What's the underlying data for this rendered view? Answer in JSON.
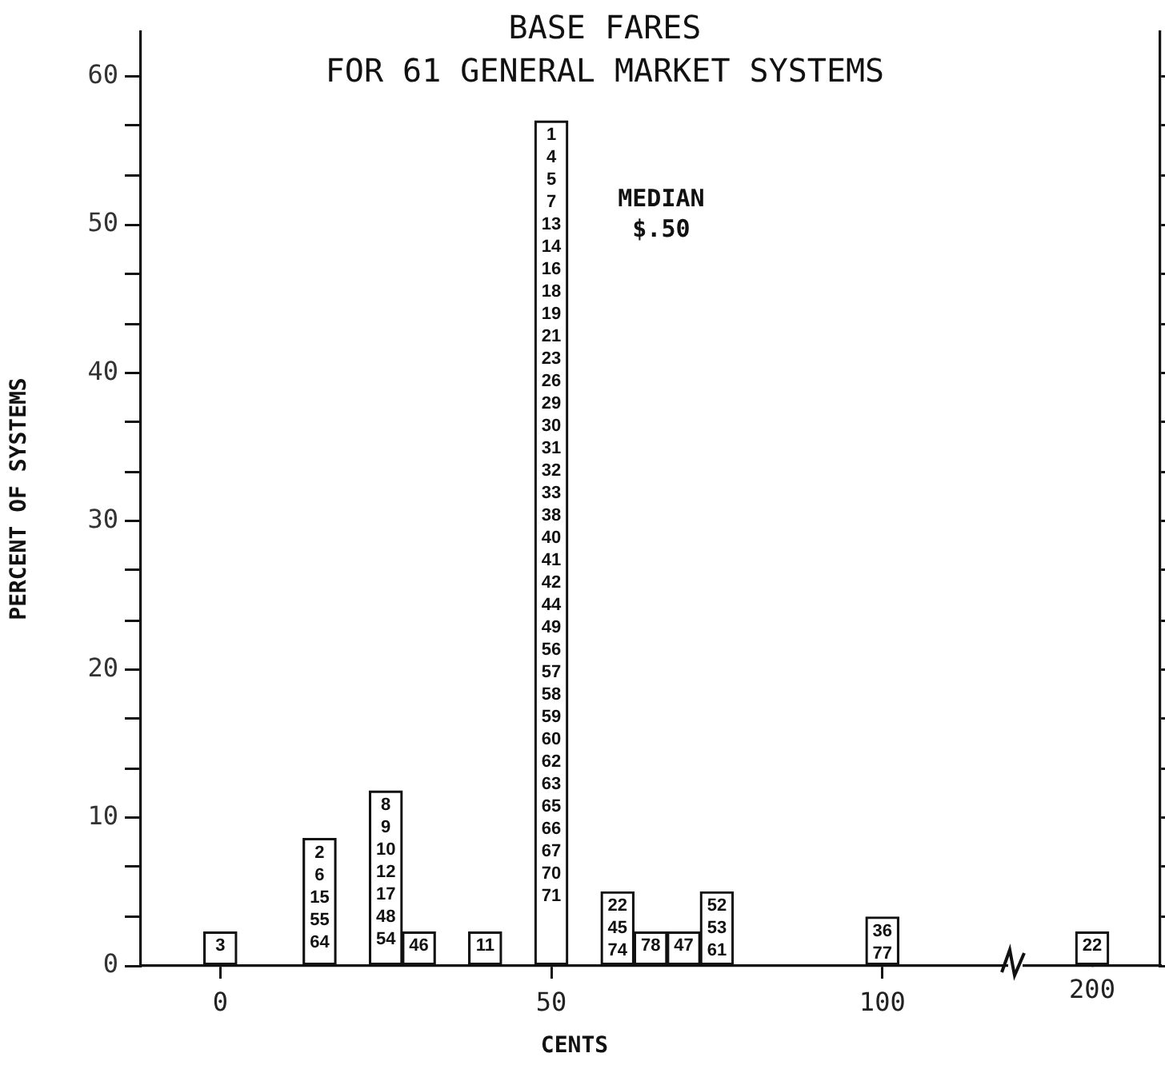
{
  "chart_data": [
    {
      "type": "bar",
      "title": "BASE FARES",
      "subtitle": "FOR 61 GENERAL MARKET SYSTEMS",
      "xlabel": "CENTS",
      "ylabel": "PERCENT OF SYSTEMS",
      "x": [
        0,
        15,
        25,
        30,
        40,
        50,
        60,
        65,
        70,
        75,
        100
      ],
      "values": [
        2.3,
        8.6,
        11.8,
        2.3,
        2.3,
        57,
        5.0,
        2.3,
        2.3,
        5.0,
        3.3
      ],
      "color": "#ffffff",
      "xlim": [
        -12,
        119
      ],
      "xticks": [
        0,
        50,
        100
      ],
      "ylim": [
        0,
        63
      ],
      "yticks": [
        0,
        {
          "value": 3.3,
          "label": null
        },
        {
          "value": 6.7,
          "label": null
        },
        10,
        {
          "value": 13.3,
          "label": null
        },
        {
          "value": 16.7,
          "label": null
        },
        20,
        {
          "value": 23.3,
          "label": null
        },
        {
          "value": 26.7,
          "label": null
        },
        30,
        {
          "value": 33.3,
          "label": null
        },
        {
          "value": 36.7,
          "label": null
        },
        40,
        {
          "value": 43.3,
          "label": null
        },
        {
          "value": 46.7,
          "label": null
        },
        50,
        {
          "value": 53.3,
          "label": null
        },
        {
          "value": 56.7,
          "label": null
        },
        60
      ],
      "annotations": [
        "MEDIAN\n$.50",
        {
          "text": "3",
          "x": 0,
          "y": 2.3
        },
        {
          "text": "2\n6\n15\n55\n64",
          "x": 15,
          "y": 8.6
        },
        {
          "text": "8\n9\n10\n12\n17\n48\n54",
          "x": 25,
          "y": 11.8
        },
        {
          "text": "46",
          "x": 30,
          "y": 2.3
        },
        {
          "text": "11",
          "x": 40,
          "y": 2.3
        },
        {
          "text": "1\n4\n5\n7\n13",
          "x": 50,
          "y": 57
        },
        "14\n16\n18\n19\n21",
        "23\n26\n29\n30\n31",
        "32\n33\n38\n40\n41",
        "42\n44\n49\n56\n57",
        "58\n59\n60\n62\n63",
        "65\n66\n67\n70\n71",
        {
          "text": "22\n45\n74",
          "x": 60,
          "y": 5.0
        },
        {
          "text": "78",
          "x": 65,
          "y": 2.3
        },
        {
          "text": "47",
          "x": 70,
          "y": 2.3
        },
        {
          "text": "52\n53\n61",
          "x": 75,
          "y": 5.0
        },
        {
          "text": "36\n77",
          "x": 100,
          "y": 3.3
        }
      ],
      "grid": false
    },
    {
      "type": "bar",
      "categories": [
        "200"
      ],
      "values": [
        2.3
      ],
      "color": "#ffffff",
      "ylim": [
        0,
        63
      ],
      "yticks": [
        0,
        {
          "value": 3.3,
          "label": null
        },
        {
          "value": 6.7,
          "label": null
        },
        10,
        {
          "value": 13.3,
          "label": null
        },
        {
          "value": 16.7,
          "label": null
        },
        20,
        {
          "value": 23.3,
          "label": null
        },
        {
          "value": 26.7,
          "label": null
        },
        30,
        {
          "value": 33.3,
          "label": null
        },
        {
          "value": 36.7,
          "label": null
        },
        40,
        {
          "value": 43.3,
          "label": null
        },
        {
          "value": 46.7,
          "label": null
        },
        50,
        {
          "value": 53.3,
          "label": null
        },
        {
          "value": 56.7,
          "label": null
        },
        60
      ],
      "annotations": [
        {
          "text": "22",
          "x": "200",
          "y": 2.3
        }
      ],
      "tick_labels": "x",
      "grid": false
    }
  ]
}
